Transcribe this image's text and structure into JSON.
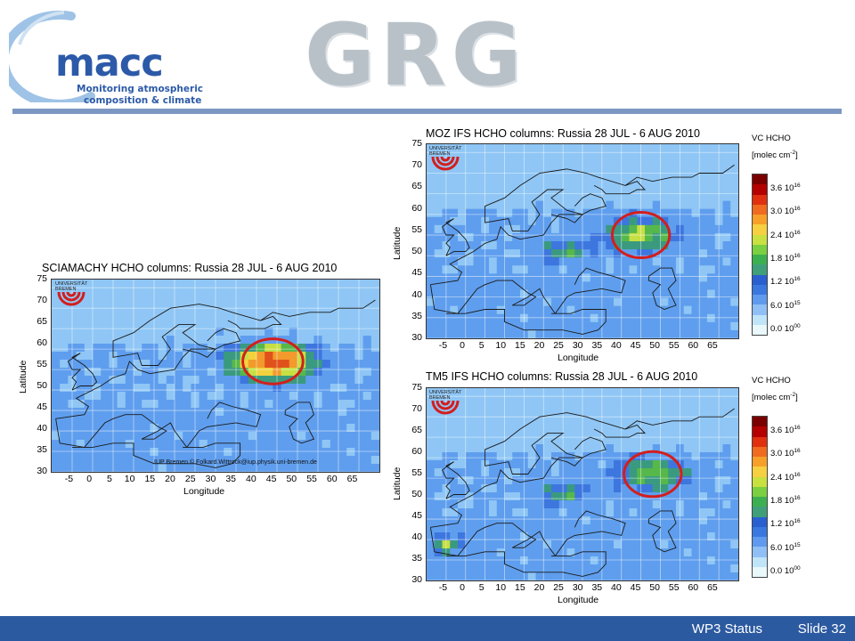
{
  "header": {
    "macc_logo": {
      "word": "macc",
      "subtitle_line1": "Monitoring atmospheric",
      "subtitle_line2": "composition & climate"
    },
    "grg_logo": "GRG"
  },
  "panels": {
    "sciamachy": {
      "title": "SCIAMACHY HCHO columns: Russia 28 JUL - 6 AUG 2010",
      "credit": "IUP Bremen © Folkard.Wittrock@iup.physik.uni-bremen.de"
    },
    "moz": {
      "title": "MOZ IFS HCHO columns: Russia 28 JUL - 6 AUG 2010"
    },
    "tm5": {
      "title": "TM5 IFS HCHO columns: Russia 28 JUL - 6 AUG 2010"
    }
  },
  "axes": {
    "latitude_label": "Latitude",
    "longitude_label": "Longitude",
    "lat_ticks": [
      "75",
      "70",
      "65",
      "60",
      "55",
      "50",
      "45",
      "40",
      "35",
      "30"
    ],
    "lon_ticks": [
      "-5",
      "0",
      "5",
      "10",
      "15",
      "20",
      "25",
      "30",
      "35",
      "40",
      "45",
      "50",
      "55",
      "60",
      "65"
    ]
  },
  "university_logo": {
    "line1": "UNIVERSITÄT",
    "line2": "BREMEN"
  },
  "colorbar": {
    "title_line1": "VC HCHO",
    "title_line2": "[molec cm",
    "title_exp": "-2",
    "title_close": "]",
    "labels": [
      {
        "mant": "3.6 10",
        "exp": "16"
      },
      {
        "mant": "3.0 10",
        "exp": "16"
      },
      {
        "mant": "2.4 10",
        "exp": "16"
      },
      {
        "mant": "1.8 10",
        "exp": "16"
      },
      {
        "mant": "1.2 10",
        "exp": "16"
      },
      {
        "mant": "6.0 10",
        "exp": "15"
      },
      {
        "mant": "0.0 10",
        "exp": "00"
      }
    ],
    "colors": [
      "#7a0000",
      "#b40000",
      "#e03010",
      "#f06a20",
      "#f6a02a",
      "#f6d040",
      "#c8e040",
      "#7ad040",
      "#3cb050",
      "#3f9f7a",
      "#2a5fd0",
      "#3a78e0",
      "#5f9aee",
      "#8fbff5",
      "#c0e4f8",
      "#e8f8fb"
    ]
  },
  "hotspots": [
    {
      "panel": "sciamachy",
      "lon": 44,
      "lat": 57,
      "intensity": 2.9
    },
    {
      "panel": "moz",
      "lon": 45,
      "lat": 55,
      "intensity": 1.4
    },
    {
      "panel": "tm5",
      "lon": 48,
      "lat": 56,
      "intensity": 1.3
    }
  ],
  "footer": {
    "label": "WP3 Status",
    "slide": "Slide 32",
    "bar_color": "#2c5aa0"
  }
}
